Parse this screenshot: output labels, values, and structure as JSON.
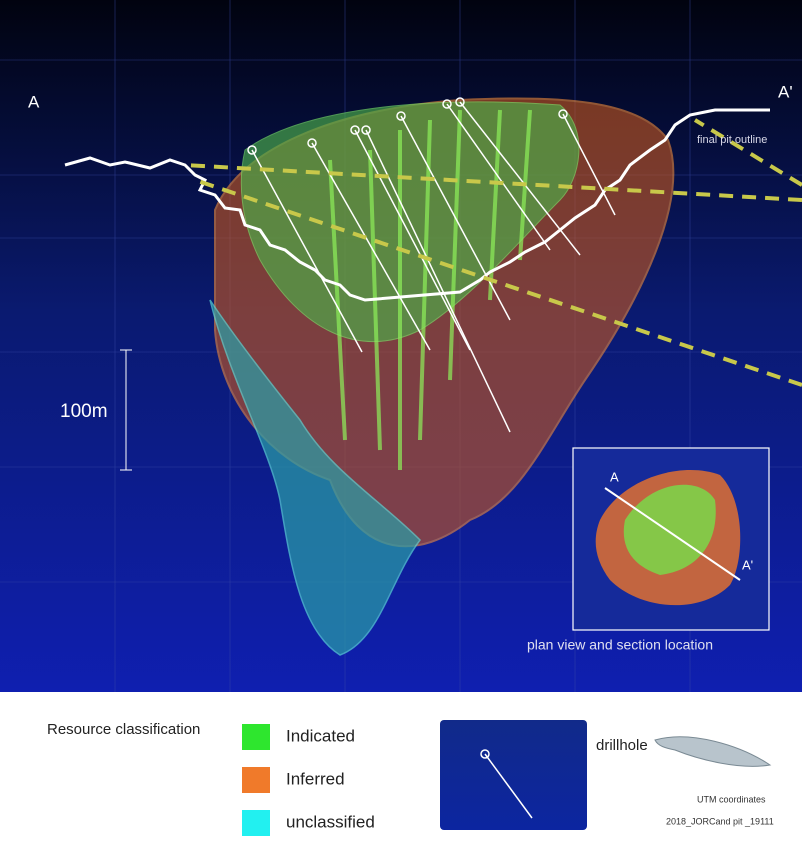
{
  "section": {
    "left_label": "A",
    "right_label": "A'",
    "pit_label": "final pit outline",
    "scale_label": "100m",
    "inset": {
      "label_a": "A",
      "label_a_prime": "A'",
      "caption": "plan view and section location"
    }
  },
  "legend": {
    "title": "Resource classification",
    "items": [
      {
        "label": "Indicated",
        "color": "#2ee62e"
      },
      {
        "label": "Inferred",
        "color": "#f07a2a"
      },
      {
        "label": "unclassified",
        "color": "#22f0f0"
      }
    ],
    "drillhole": "drillhole",
    "coordinates": "UTM coordinates",
    "file": "2018_JORCand pit _19111"
  }
}
